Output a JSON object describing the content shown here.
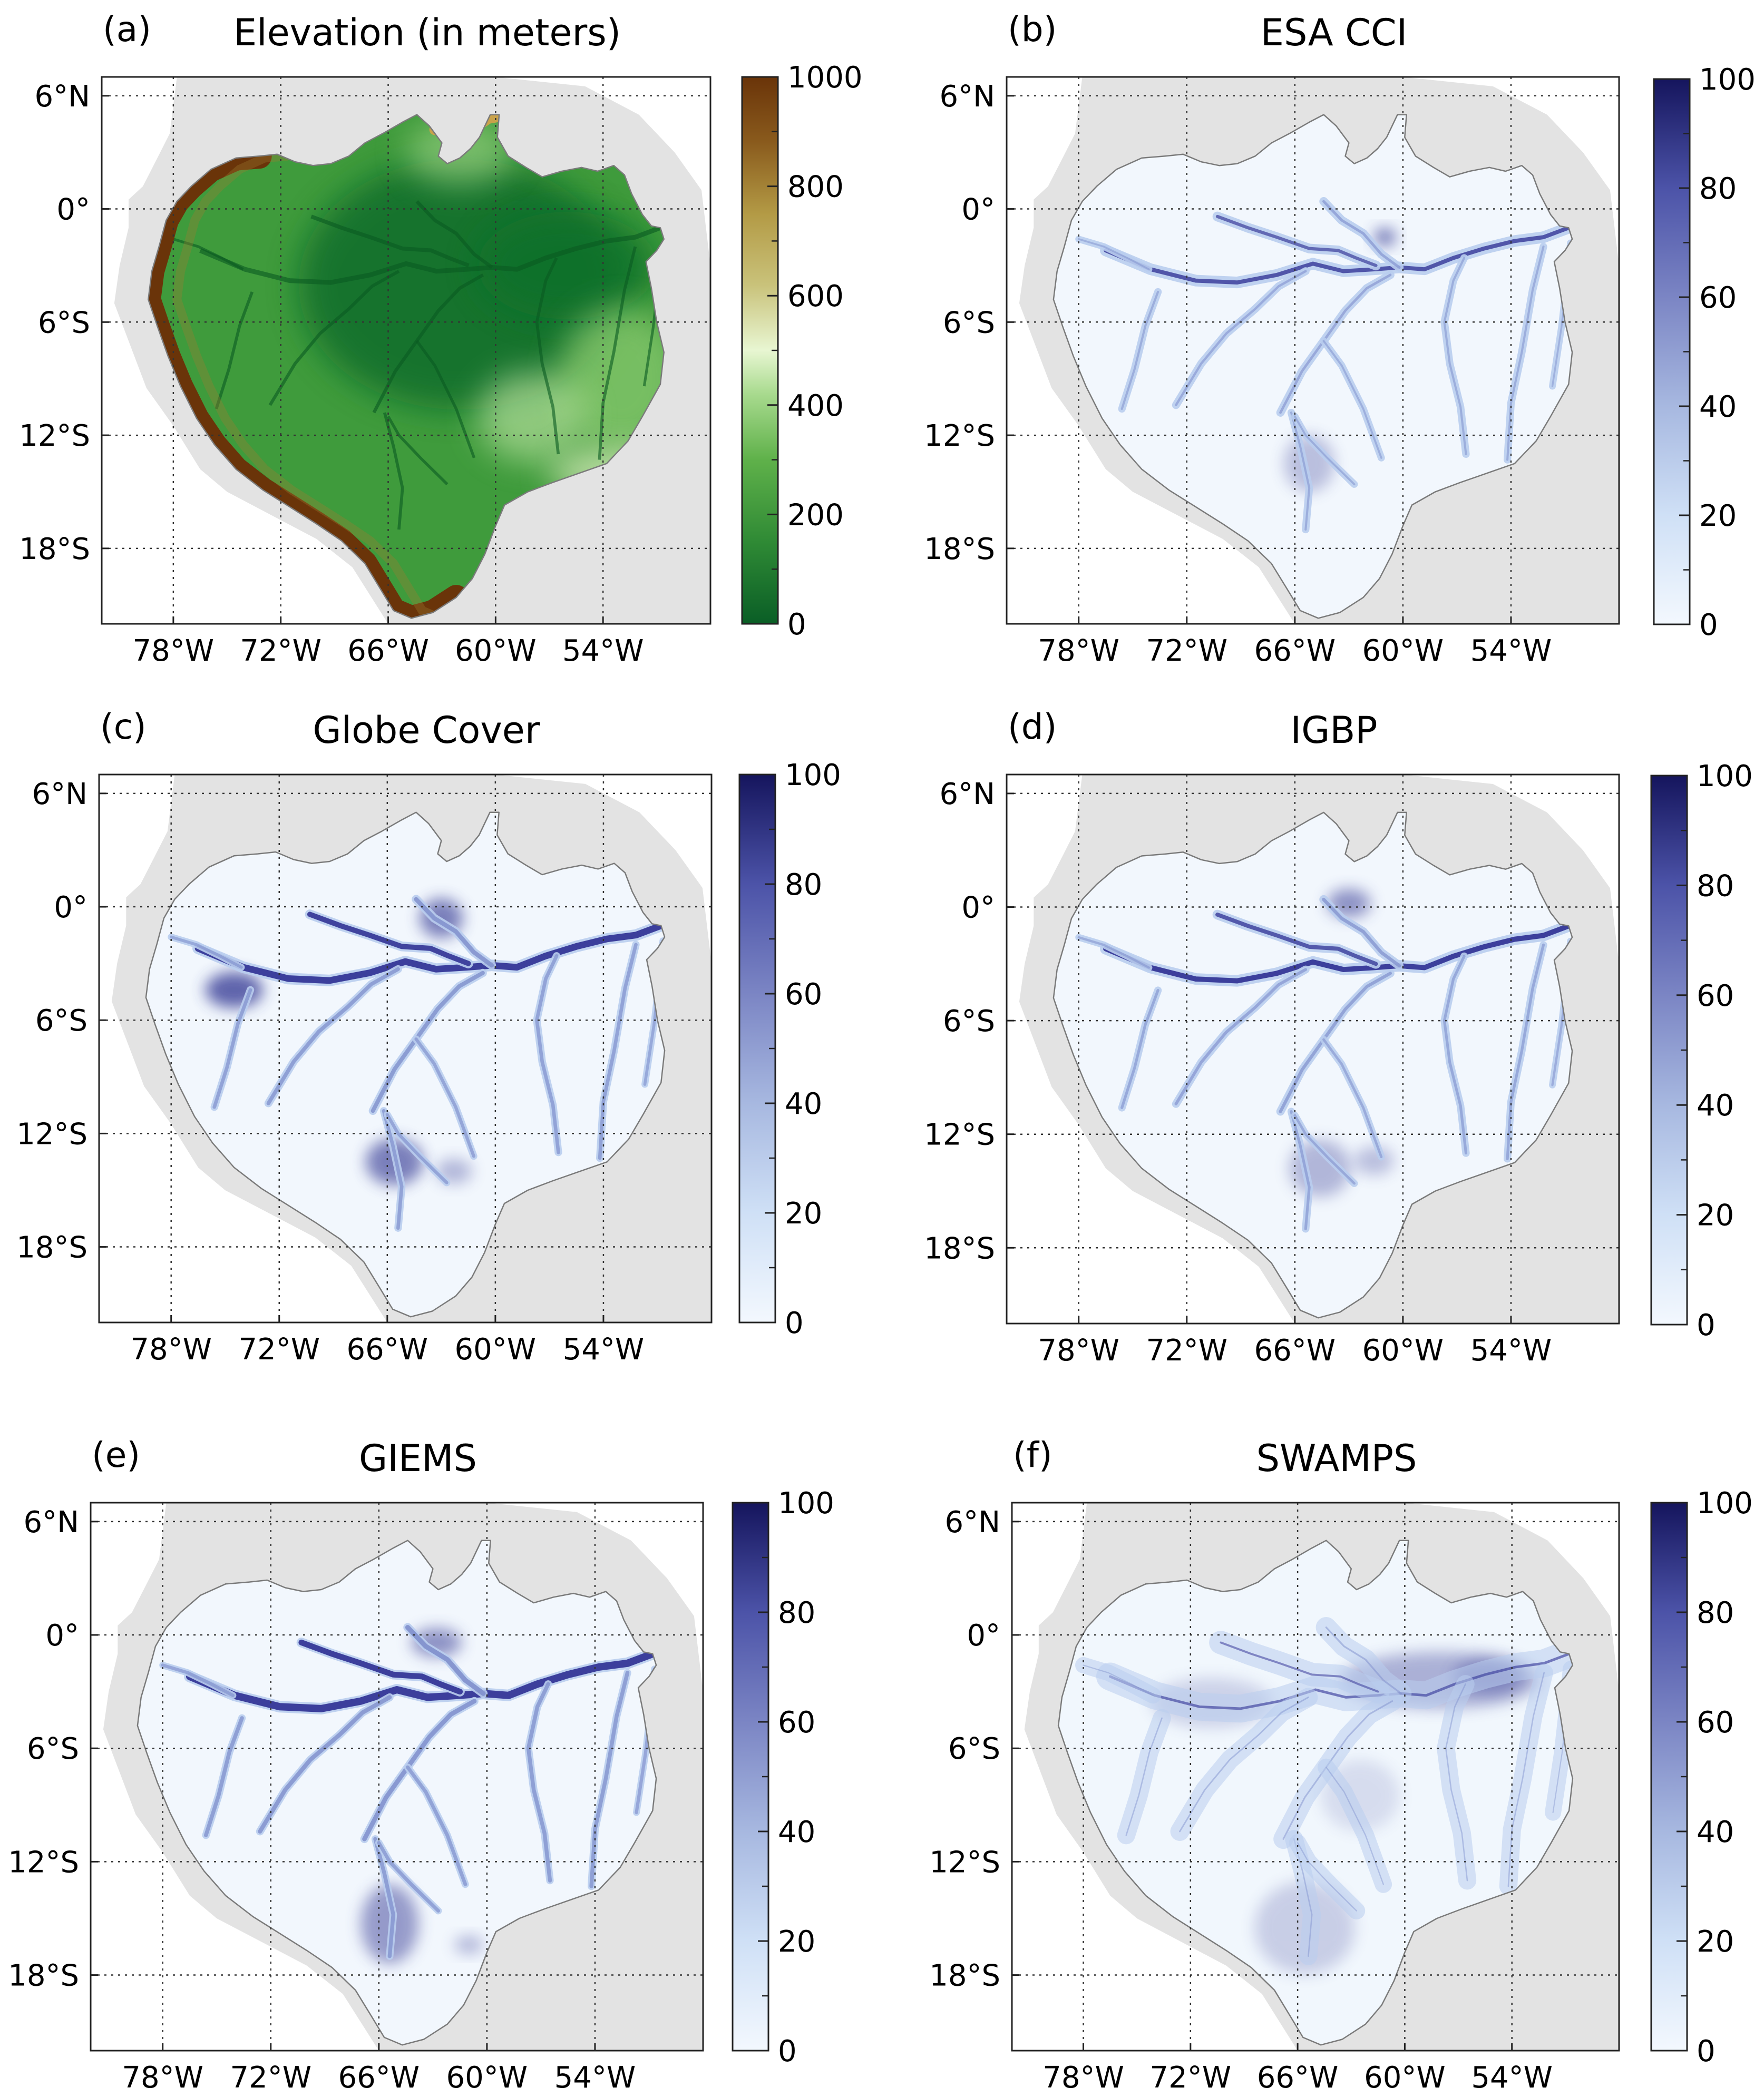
{
  "figure": {
    "panels": [
      {
        "id": "a",
        "label": "(a)",
        "title": "Elevation (in meters)",
        "colormap": "terrain",
        "colorbar": {
          "min": 0,
          "max": 1000,
          "ticks": [
            "0",
            "200",
            "400",
            "600",
            "800",
            "1000"
          ]
        }
      },
      {
        "id": "b",
        "label": "(b)",
        "title": "ESA CCI",
        "colormap": "blues",
        "colorbar": {
          "min": 0,
          "max": 100,
          "ticks": [
            "0",
            "20",
            "40",
            "60",
            "80",
            "100"
          ]
        }
      },
      {
        "id": "c",
        "label": "(c)",
        "title": "Globe Cover",
        "colormap": "blues",
        "colorbar": {
          "min": 0,
          "max": 100,
          "ticks": [
            "0",
            "20",
            "40",
            "60",
            "80",
            "100"
          ]
        }
      },
      {
        "id": "d",
        "label": "(d)",
        "title": "IGBP",
        "colormap": "blues",
        "colorbar": {
          "min": 0,
          "max": 100,
          "ticks": [
            "0",
            "20",
            "40",
            "60",
            "80",
            "100"
          ]
        }
      },
      {
        "id": "e",
        "label": "(e)",
        "title": "GIEMS",
        "colormap": "blues",
        "colorbar": {
          "min": 0,
          "max": 100,
          "ticks": [
            "0",
            "20",
            "40",
            "60",
            "80",
            "100"
          ]
        }
      },
      {
        "id": "f",
        "label": "(f)",
        "title": "SWAMPS",
        "colormap": "blues",
        "colorbar": {
          "min": 0,
          "max": 100,
          "ticks": [
            "0",
            "20",
            "40",
            "60",
            "80",
            "100"
          ]
        }
      }
    ],
    "lat_ticks": [
      "6°N",
      "0°",
      "6°S",
      "12°S",
      "18°S"
    ],
    "lon_ticks": [
      "78°W",
      "72°W",
      "66°W",
      "60°W",
      "54°W"
    ],
    "lat_values": [
      6,
      0,
      -6,
      -12,
      -18
    ],
    "lon_values": [
      -78,
      -72,
      -66,
      -60,
      -54
    ],
    "extent": {
      "lon_min": -82,
      "lon_max": -48,
      "lat_min": -22,
      "lat_max": 7
    },
    "colors": {
      "land": "#e3e3e3",
      "basin_fill": "#ffffff",
      "basin_outline": "#7a7a7a",
      "grid": "#333333",
      "blue_high": "#1a1a6a",
      "blue_mid": "#4c53a8",
      "blue_low": "#cfe0f6",
      "elev_low": "#0d6b2a",
      "elev_mid": "#62b34a",
      "elev_light": "#d6eec0",
      "elev_high": "#6a3409"
    }
  }
}
